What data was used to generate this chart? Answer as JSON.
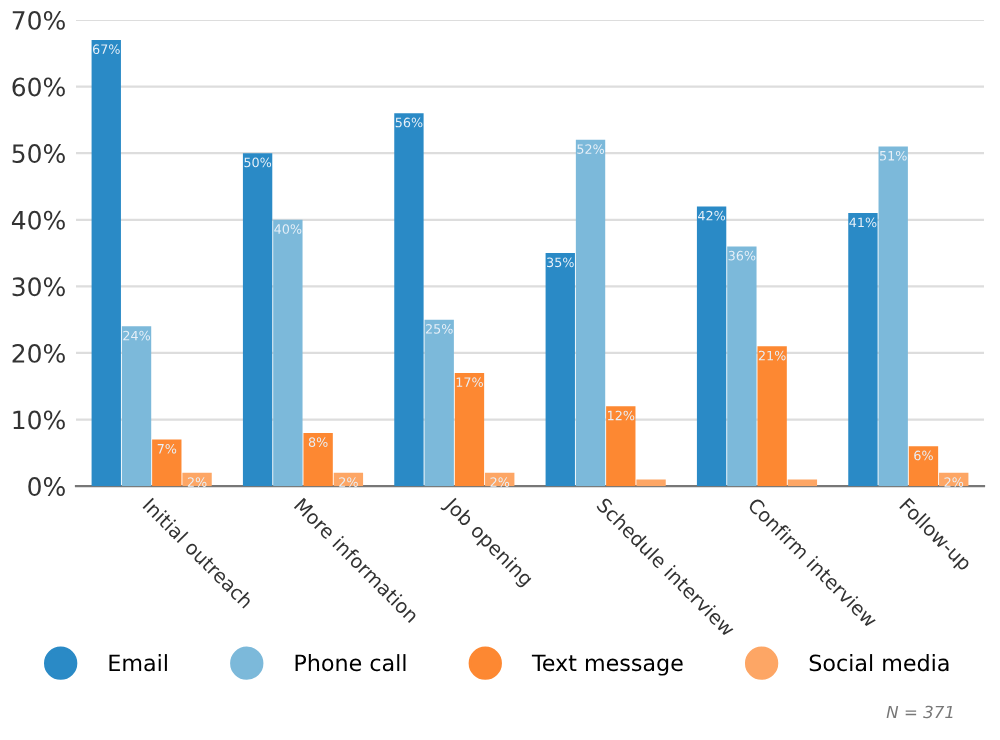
{
  "chart_data": {
    "type": "bar",
    "categories": [
      "Initial outreach",
      "More information",
      "Job opening",
      "Schedule interview",
      "Confirm interview",
      "Follow-up"
    ],
    "series": [
      {
        "name": "Email",
        "color": "#2a8ac6",
        "values": [
          67,
          50,
          56,
          35,
          42,
          41
        ],
        "value_labels": [
          "67%",
          "50%",
          "56%",
          "35%",
          "42%",
          "41%"
        ]
      },
      {
        "name": "Phone call",
        "color": "#7cb9da",
        "values": [
          24,
          40,
          25,
          52,
          36,
          51
        ],
        "value_labels": [
          "24%",
          "40%",
          "25%",
          "52%",
          "36%",
          "51%"
        ]
      },
      {
        "name": "Text message",
        "color": "#fd8832",
        "values": [
          7,
          8,
          17,
          12,
          21,
          6
        ],
        "value_labels": [
          "7%",
          "8%",
          "17%",
          "12%",
          "21%",
          "6%"
        ]
      },
      {
        "name": "Social media",
        "color": "#fda665",
        "values": [
          2,
          2,
          2,
          1,
          1,
          2
        ],
        "value_labels": [
          "2%",
          "2%",
          "2%",
          null,
          null,
          "2%"
        ]
      }
    ],
    "ylim": [
      0,
      70
    ],
    "yticks": [
      {
        "value": 0,
        "label": "0%"
      },
      {
        "value": 10,
        "label": "10%"
      },
      {
        "value": 20,
        "label": "20%"
      },
      {
        "value": 30,
        "label": "30%"
      },
      {
        "value": 40,
        "label": "40%"
      },
      {
        "value": 50,
        "label": "50%"
      },
      {
        "value": 60,
        "label": "60%"
      },
      {
        "value": 70,
        "label": "70%"
      }
    ],
    "grid": "y",
    "legend": "bottom",
    "annotations": [
      "N = 371"
    ]
  }
}
